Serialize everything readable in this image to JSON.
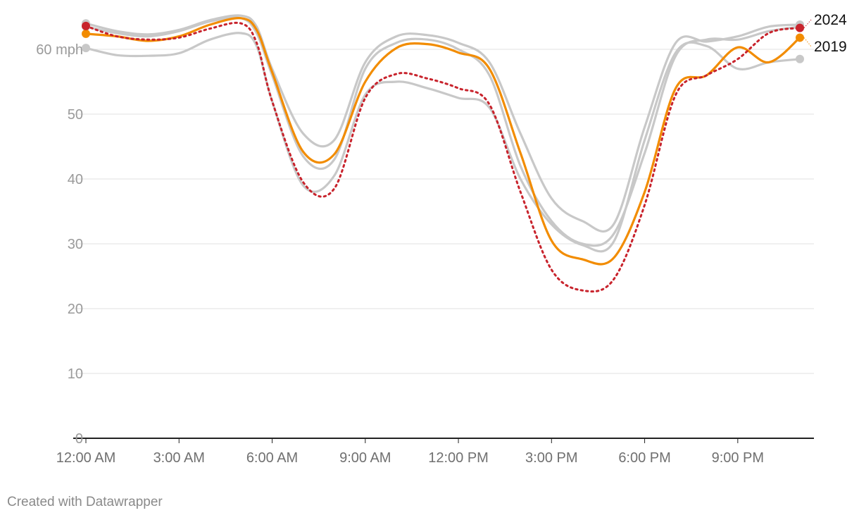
{
  "chart_data": {
    "type": "line",
    "title": "",
    "xlabel": "",
    "ylabel": "",
    "unit_label": "60 mph",
    "x_hours_range": [
      0,
      23
    ],
    "ylim": [
      0,
      65
    ],
    "yticks": [
      {
        "value": 0,
        "label": "0"
      },
      {
        "value": 10,
        "label": "10"
      },
      {
        "value": 20,
        "label": "20"
      },
      {
        "value": 30,
        "label": "30"
      },
      {
        "value": 40,
        "label": "40"
      },
      {
        "value": 50,
        "label": "50"
      },
      {
        "value": 60,
        "label": "60 mph"
      }
    ],
    "xticks": [
      {
        "hour": 0,
        "label": "12:00 AM"
      },
      {
        "hour": 3,
        "label": "3:00 AM"
      },
      {
        "hour": 6,
        "label": "6:00 AM"
      },
      {
        "hour": 9,
        "label": "9:00 AM"
      },
      {
        "hour": 12,
        "label": "12:00 PM"
      },
      {
        "hour": 15,
        "label": "3:00 PM"
      },
      {
        "hour": 18,
        "label": "6:00 PM"
      },
      {
        "hour": 21,
        "label": "9:00 PM"
      }
    ],
    "grid": true,
    "legend": "end labels",
    "series": [
      {
        "name": "",
        "style": "gray",
        "x": [
          0,
          1,
          2,
          3,
          4,
          5,
          5.5,
          6,
          7,
          8,
          9,
          10,
          11,
          12,
          13,
          14,
          15,
          16,
          17,
          18,
          19,
          20,
          21,
          22,
          23
        ],
        "y": [
          60.2,
          59.1,
          59.0,
          59.4,
          61.5,
          62.5,
          60.5,
          52.0,
          39.0,
          40.5,
          53.0,
          55.0,
          54.0,
          52.5,
          51.0,
          40.0,
          33.0,
          29.8,
          30.3,
          46.0,
          59.5,
          60.5,
          57.0,
          58.0,
          58.5
        ]
      },
      {
        "name": "",
        "style": "gray",
        "x": [
          0,
          1,
          2,
          3,
          4,
          5,
          5.5,
          6,
          7,
          8,
          9,
          10,
          11,
          12,
          13,
          14,
          15,
          16,
          17,
          18,
          19,
          20,
          21,
          22,
          23
        ],
        "y": [
          64.0,
          62.8,
          62.3,
          63.0,
          64.5,
          65.2,
          63.5,
          57.0,
          47.0,
          46.0,
          58.0,
          62.0,
          62.2,
          61.0,
          58.0,
          47.0,
          37.0,
          33.5,
          33.0,
          48.0,
          61.0,
          61.2,
          62.0,
          63.5,
          63.8
        ]
      },
      {
        "name": "",
        "style": "gray",
        "x": [
          0,
          1,
          2,
          3,
          4,
          5,
          5.5,
          6,
          7,
          8,
          9,
          10,
          11,
          12,
          13,
          14,
          15,
          16,
          17,
          18,
          19,
          20,
          21,
          22,
          23
        ],
        "y": [
          63.5,
          62.5,
          62.0,
          62.8,
          64.3,
          64.8,
          62.5,
          56.0,
          43.5,
          43.0,
          57.0,
          61.0,
          61.5,
          60.0,
          56.0,
          42.0,
          33.5,
          30.0,
          31.5,
          44.0,
          59.0,
          61.5,
          61.5,
          62.8,
          63.5
        ]
      },
      {
        "name": "2019",
        "style": "orange",
        "x": [
          0,
          1,
          2,
          3,
          4,
          5,
          5.5,
          6,
          7,
          8,
          9,
          10,
          11,
          12,
          13,
          14,
          15,
          16,
          17,
          18,
          19,
          20,
          21,
          22,
          23
        ],
        "y": [
          62.4,
          62.0,
          61.3,
          62.0,
          63.8,
          64.8,
          63.0,
          56.5,
          44.2,
          43.8,
          55.0,
          60.2,
          60.8,
          59.5,
          57.0,
          44.0,
          30.5,
          27.6,
          27.8,
          38.0,
          54.0,
          56.0,
          60.3,
          58.0,
          61.8
        ]
      },
      {
        "name": "2024",
        "style": "red-dotted",
        "x": [
          0,
          1,
          2,
          3,
          4,
          5,
          5.5,
          6,
          7,
          8,
          9,
          10,
          11,
          12,
          13,
          14,
          15,
          16,
          17,
          18,
          19,
          20,
          21,
          22,
          23
        ],
        "y": [
          63.6,
          62.0,
          61.5,
          61.8,
          63.2,
          64.0,
          61.0,
          52.0,
          39.5,
          38.5,
          52.5,
          56.2,
          55.5,
          54.0,
          51.5,
          38.0,
          26.0,
          22.8,
          24.5,
          36.0,
          53.0,
          56.0,
          58.5,
          62.5,
          63.3
        ]
      }
    ],
    "colors": {
      "gray": "#c8c8c8",
      "orange": "#f28c00",
      "red": "#c8232c",
      "grid": "#e0e0e0",
      "baseline": "#222222"
    }
  },
  "footer": {
    "credit": "Created with Datawrapper"
  }
}
